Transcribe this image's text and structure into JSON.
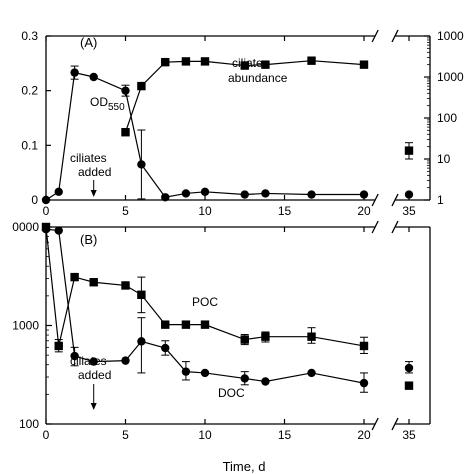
{
  "chart_data": [
    {
      "panel_label": "(A)",
      "type": "line",
      "xlabel": "",
      "ylabel": "",
      "x_ticks": [
        "0",
        "5",
        "10",
        "15",
        "20",
        "35"
      ],
      "x_axis_break": [
        21,
        34
      ],
      "ylim": [
        0,
        0.3
      ],
      "y_ticks": [
        "0",
        "0.1",
        "0.2",
        "0.3"
      ],
      "y2_scale": "log",
      "y2lim": [
        1,
        10000
      ],
      "y2_ticks": [
        "1",
        "10",
        "100",
        "1000",
        "1000"
      ],
      "series": [
        {
          "name": "OD550",
          "label_main": "OD",
          "label_sub": "550",
          "axis": "left",
          "marker": "circle",
          "x": [
            0,
            0.8,
            1.8,
            3,
            5,
            6,
            7.5,
            8.8,
            10,
            12.5,
            13.8,
            16.7,
            20,
            35
          ],
          "y": [
            0,
            0.015,
            0.233,
            0.225,
            0.2,
            0.065,
            0.005,
            0.012,
            0.015,
            0.01,
            0.012,
            0.01,
            0.01,
            0.01
          ],
          "error": [
            null,
            null,
            0.012,
            null,
            0.01,
            0.063,
            null,
            null,
            null,
            null,
            null,
            null,
            null,
            null
          ]
        },
        {
          "name": "ciliate abundance",
          "label_lines": [
            "ciliate",
            "abundance"
          ],
          "axis": "right",
          "marker": "square",
          "x": [
            5,
            6,
            7.5,
            8.8,
            10,
            12.5,
            13.8,
            16.7,
            20,
            35
          ],
          "y": [
            45,
            600,
            2300,
            2400,
            2400,
            1900,
            2000,
            2500,
            2000,
            16
          ],
          "error_low": [
            null,
            null,
            null,
            null,
            null,
            null,
            null,
            null,
            null,
            10
          ],
          "error_high": [
            null,
            null,
            null,
            null,
            null,
            null,
            null,
            null,
            null,
            25
          ]
        }
      ],
      "annotations": [
        {
          "lines": [
            "ciliates",
            "added"
          ],
          "arrow_x": 3
        }
      ]
    },
    {
      "panel_label": "(B)",
      "type": "line",
      "xlabel": "Time, d",
      "ylabel": "",
      "x_ticks": [
        "0",
        "5",
        "10",
        "15",
        "20",
        "35"
      ],
      "x_axis_break": [
        21,
        34
      ],
      "y_scale": "log",
      "ylim": [
        100,
        10000
      ],
      "y_ticks": [
        "100",
        "1000",
        "0000"
      ],
      "series": [
        {
          "name": "POC",
          "marker": "square",
          "x": [
            0,
            0.8,
            1.8,
            3,
            5,
            6,
            7.5,
            8.8,
            10,
            12.5,
            13.8,
            16.7,
            20,
            35
          ],
          "y": [
            10000,
            620,
            3100,
            2750,
            2550,
            2050,
            1020,
            1020,
            1020,
            720,
            770,
            770,
            620,
            245
          ],
          "error_low": [
            null,
            540,
            null,
            null,
            null,
            1350,
            null,
            null,
            null,
            640,
            680,
            660,
            520,
            null
          ],
          "error_high": [
            null,
            720,
            null,
            null,
            null,
            3100,
            null,
            null,
            null,
            810,
            860,
            950,
            760,
            null
          ]
        },
        {
          "name": "DOC",
          "marker": "circle",
          "x": [
            0,
            0.8,
            1.8,
            3,
            5,
            6,
            7.5,
            8.8,
            10,
            12.5,
            13.8,
            16.7,
            20,
            35
          ],
          "y": [
            9500,
            9200,
            490,
            430,
            440,
            690,
            590,
            340,
            330,
            290,
            270,
            330,
            260,
            370
          ],
          "error_low": [
            null,
            null,
            390,
            null,
            null,
            330,
            500,
            280,
            null,
            250,
            null,
            null,
            210,
            330
          ],
          "error_high": [
            null,
            null,
            600,
            null,
            null,
            1200,
            700,
            430,
            null,
            340,
            null,
            null,
            330,
            430
          ]
        }
      ],
      "annotations": [
        {
          "lines": [
            "ciliates",
            "added"
          ],
          "arrow_x": 3
        }
      ]
    }
  ]
}
